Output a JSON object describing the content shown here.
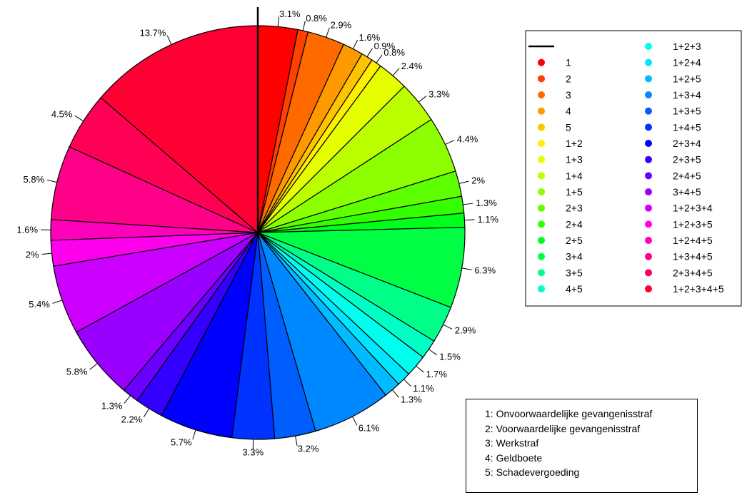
{
  "chart_data": {
    "type": "pie",
    "start_angle_deg": 90,
    "direction": "clockwise",
    "slices": [
      {
        "label": "1",
        "value": 3.1,
        "value_label": "3.1%",
        "color": "#FF0000"
      },
      {
        "label": "2",
        "value": 0.8,
        "value_label": "0.8%",
        "color": "#FF4000"
      },
      {
        "label": "3",
        "value": 2.9,
        "value_label": "2.9%",
        "color": "#FF6A00"
      },
      {
        "label": "4",
        "value": 1.6,
        "value_label": "1.6%",
        "color": "#FF9900"
      },
      {
        "label": "5",
        "value": 0.9,
        "value_label": "0.9%",
        "color": "#FFC400"
      },
      {
        "label": "1+2",
        "value": 0.8,
        "value_label": "0.8%",
        "color": "#FFEE00"
      },
      {
        "label": "1+3",
        "value": 2.4,
        "value_label": "2.4%",
        "color": "#E6FF00"
      },
      {
        "label": "1+4",
        "value": 3.3,
        "value_label": "3.3%",
        "color": "#BBFF00"
      },
      {
        "label": "1+5",
        "value": 4.4,
        "value_label": "4.4%",
        "color": "#8CFF00"
      },
      {
        "label": "2+3",
        "value": 2.0,
        "value_label": "2%",
        "color": "#5EFF00"
      },
      {
        "label": "2+4",
        "value": 1.3,
        "value_label": "1.3%",
        "color": "#33FF00"
      },
      {
        "label": "2+5",
        "value": 1.1,
        "value_label": "1.1%",
        "color": "#00FF1A"
      },
      {
        "label": "3+4",
        "value": 6.3,
        "value_label": "6.3%",
        "color": "#00FF44"
      },
      {
        "label": "3+5",
        "value": 2.9,
        "value_label": "2.9%",
        "color": "#00FF88"
      },
      {
        "label": "4+5",
        "value": 1.5,
        "value_label": "1.5%",
        "color": "#00FFC4"
      },
      {
        "label": "1+2+3",
        "value": 1.7,
        "value_label": "1.7%",
        "color": "#00FFEE"
      },
      {
        "label": "1+2+4",
        "value": 1.1,
        "value_label": "1.1%",
        "color": "#00E6FF"
      },
      {
        "label": "1+2+5",
        "value": 1.3,
        "value_label": "1.3%",
        "color": "#00BBFF"
      },
      {
        "label": "1+3+4",
        "value": 6.1,
        "value_label": "6.1%",
        "color": "#0088FF"
      },
      {
        "label": "1+3+5",
        "value": 3.2,
        "value_label": "3.2%",
        "color": "#005EFF"
      },
      {
        "label": "1+4+5",
        "value": 3.3,
        "value_label": "3.3%",
        "color": "#0033FF"
      },
      {
        "label": "2+3+4",
        "value": 5.7,
        "value_label": "5.7%",
        "color": "#0000FF"
      },
      {
        "label": "2+3+5",
        "value": 2.2,
        "value_label": "2.2%",
        "color": "#3300FF"
      },
      {
        "label": "2+4+5",
        "value": 1.3,
        "value_label": "1.3%",
        "color": "#6A00FF"
      },
      {
        "label": "3+4+5",
        "value": 5.8,
        "value_label": "5.8%",
        "color": "#9900FF"
      },
      {
        "label": "1+2+3+4",
        "value": 5.4,
        "value_label": "5.4%",
        "color": "#CC00FF"
      },
      {
        "label": "1+2+3+5",
        "value": 2.0,
        "value_label": "2%",
        "color": "#FF00EE"
      },
      {
        "label": "1+2+4+5",
        "value": 1.6,
        "value_label": "1.6%",
        "color": "#FF00BB"
      },
      {
        "label": "1+3+4+5",
        "value": 5.8,
        "value_label": "5.8%",
        "color": "#FF0088"
      },
      {
        "label": "2+3+4+5",
        "value": 4.5,
        "value_label": "4.5%",
        "color": "#FF0055"
      },
      {
        "label": "1+2+3+4+5",
        "value": 13.7,
        "value_label": "13.7%",
        "color": "#FF0033"
      }
    ],
    "legend_placement": "right"
  },
  "code_key": [
    "1: Onvoorwaardelijke gevangenisstraf",
    "2: Voorwaardelijke gevangenisstraf",
    "3: Werkstraf",
    "4: Geldboete",
    "5: Schadevergoeding"
  ]
}
